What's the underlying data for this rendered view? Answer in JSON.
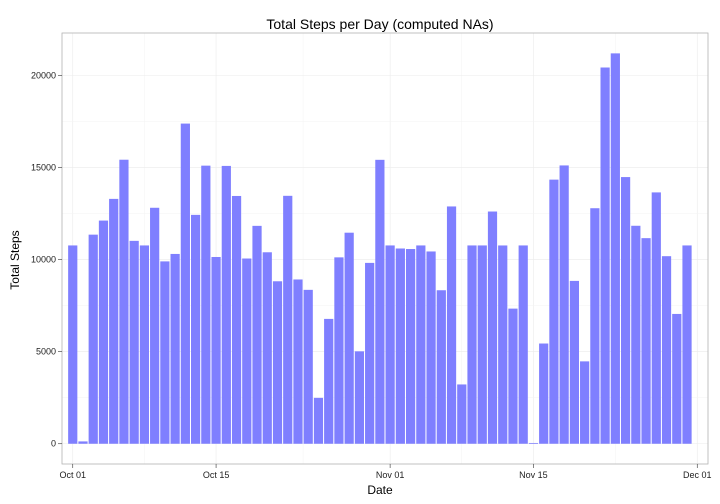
{
  "chart_data": {
    "type": "bar",
    "title": "Total Steps per Day (computed NAs)",
    "xlabel": "Date",
    "ylabel": "Total Steps",
    "bar_color": "#7f7fff",
    "grid": true,
    "legend": "none",
    "x_start": "2012-10-01",
    "x_ticks": [
      "Oct 01",
      "Oct 15",
      "Nov 01",
      "Nov 15",
      "Dec 01"
    ],
    "y_ticks": [
      "0",
      "5000",
      "10000",
      "15000",
      "20000"
    ],
    "ylim": [
      -1100,
      22300
    ],
    "categories": [
      "2012-10-01",
      "2012-10-02",
      "2012-10-03",
      "2012-10-04",
      "2012-10-05",
      "2012-10-06",
      "2012-10-07",
      "2012-10-08",
      "2012-10-09",
      "2012-10-10",
      "2012-10-11",
      "2012-10-12",
      "2012-10-13",
      "2012-10-14",
      "2012-10-15",
      "2012-10-16",
      "2012-10-17",
      "2012-10-18",
      "2012-10-19",
      "2012-10-20",
      "2012-10-21",
      "2012-10-22",
      "2012-10-23",
      "2012-10-24",
      "2012-10-25",
      "2012-10-26",
      "2012-10-27",
      "2012-10-28",
      "2012-10-29",
      "2012-10-30",
      "2012-10-31",
      "2012-11-01",
      "2012-11-02",
      "2012-11-03",
      "2012-11-04",
      "2012-11-05",
      "2012-11-06",
      "2012-11-07",
      "2012-11-08",
      "2012-11-09",
      "2012-11-10",
      "2012-11-11",
      "2012-11-12",
      "2012-11-13",
      "2012-11-14",
      "2012-11-15",
      "2012-11-16",
      "2012-11-17",
      "2012-11-18",
      "2012-11-19",
      "2012-11-20",
      "2012-11-21",
      "2012-11-22",
      "2012-11-23",
      "2012-11-24",
      "2012-11-25",
      "2012-11-26",
      "2012-11-27",
      "2012-11-28",
      "2012-11-29",
      "2012-11-30"
    ],
    "values": [
      10766,
      126,
      11352,
      12116,
      13294,
      15420,
      11015,
      10766,
      12811,
      9900,
      10304,
      17382,
      12426,
      15098,
      10139,
      15084,
      13452,
      10056,
      11829,
      10395,
      8821,
      13460,
      8918,
      8355,
      2492,
      6778,
      10119,
      11458,
      5018,
      9819,
      15414,
      10766,
      10600,
      10571,
      10766,
      10439,
      8334,
      12883,
      3219,
      10766,
      10766,
      12608,
      10765,
      7336,
      10766,
      41,
      5441,
      14339,
      15110,
      8841,
      4472,
      12787,
      20427,
      21194,
      14478,
      11834,
      11162,
      13646,
      10183,
      7047,
      10766
    ]
  }
}
